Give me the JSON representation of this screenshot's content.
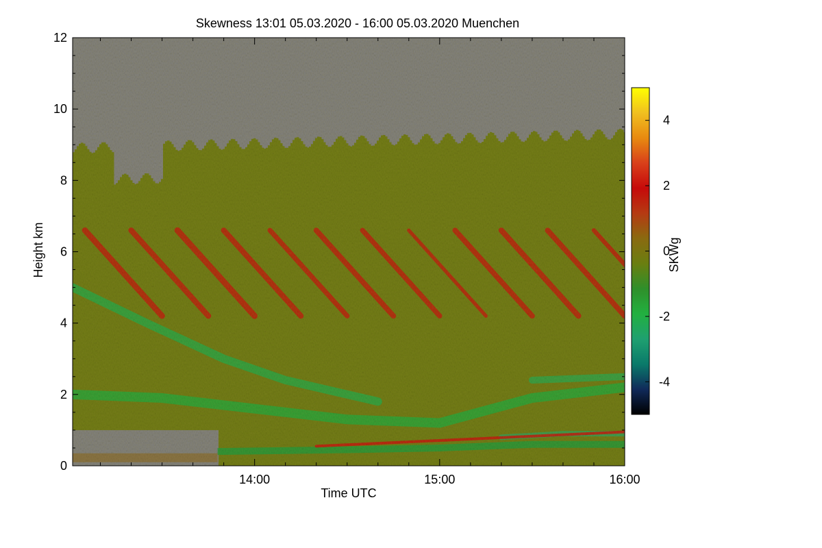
{
  "chart_data": {
    "type": "heatmap",
    "title": "Skewness   13:01 05.03.2020 - 16:00 05.03.2020 Muenchen",
    "xlabel": "Time UTC",
    "ylabel": "Height km",
    "x_range_utc": [
      "13:01",
      "16:00"
    ],
    "x_ticks": [
      "14:00",
      "15:00",
      "16:00"
    ],
    "y_range_km": [
      0,
      12
    ],
    "y_ticks": [
      "0",
      "2",
      "4",
      "6",
      "8",
      "10",
      "12"
    ],
    "colorbar": {
      "label": "SKWg",
      "range": [
        -5,
        5
      ],
      "ticks": [
        "4",
        "2",
        "0",
        "-2",
        "-4"
      ],
      "colors": [
        "#000000",
        "#102a5a",
        "#0a7a6a",
        "#1fa070",
        "#22b040",
        "#2f8f2a",
        "#6a7e10",
        "#8a6a10",
        "#b53a12",
        "#c60a0a",
        "#d9401a",
        "#e88a10",
        "#f0c020",
        "#ffff00"
      ]
    },
    "no_data_color": "#808080",
    "features": {
      "cloud_top_km_start": 8.9,
      "cloud_top_km_end": 9.3,
      "high_gray_region": "no data above cloud top",
      "low_gray_region_until": "13:48",
      "boundary_layer_top_km": 2.3,
      "dominant_sign_mid_levels": "positive (red) streaks sloping downward in time between 3 and 7 km",
      "negative_sign_low_levels": "green bands below 2.5 km"
    }
  }
}
